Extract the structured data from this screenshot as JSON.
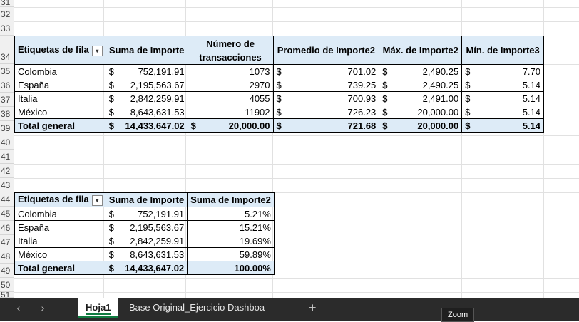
{
  "rows": [
    "31",
    "32",
    "33",
    "34",
    "35",
    "36",
    "37",
    "38",
    "39",
    "40",
    "41",
    "42",
    "43",
    "44",
    "45",
    "46",
    "47",
    "48",
    "49",
    "50",
    "51"
  ],
  "pivot1": {
    "headers": [
      "Etiquetas de fila",
      "Suma de Importe",
      "Número de transacciones",
      "Promedio de Importe2",
      "Máx. de Importe2",
      "Mín. de Importe3"
    ],
    "filter_icon": "▾",
    "currency": "$",
    "rows": [
      {
        "label": "Colombia",
        "suma": "752,191.91",
        "num": "1073",
        "prom": "701.02",
        "max": "2,490.25",
        "min": "7.70"
      },
      {
        "label": "España",
        "suma": "2,195,563.67",
        "num": "2970",
        "prom": "739.25",
        "max": "2,490.25",
        "min": "5.14"
      },
      {
        "label": "Italia",
        "suma": "2,842,259.91",
        "num": "4055",
        "prom": "700.93",
        "max": "2,491.00",
        "min": "5.14"
      },
      {
        "label": "México",
        "suma": "8,643,631.53",
        "num": "11902",
        "prom": "726.23",
        "max": "20,000.00",
        "min": "5.14"
      }
    ],
    "total": {
      "label": "Total general",
      "suma": "14,433,647.02",
      "num": "20,000.00",
      "prom": "721.68",
      "max": "20,000.00",
      "min": "5.14"
    }
  },
  "pivot2": {
    "headers": [
      "Etiquetas de fila",
      "Suma de Importe",
      "Suma de Importe2"
    ],
    "filter_icon": "▾",
    "currency": "$",
    "rows": [
      {
        "label": "Colombia",
        "suma": "752,191.91",
        "pct": "5.21%"
      },
      {
        "label": "España",
        "suma": "2,195,563.67",
        "pct": "15.21%"
      },
      {
        "label": "Italia",
        "suma": "2,842,259.91",
        "pct": "19.69%"
      },
      {
        "label": "México",
        "suma": "8,643,631.53",
        "pct": "59.89%"
      }
    ],
    "total": {
      "label": "Total general",
      "suma": "14,433,647.02",
      "pct": "100.00%"
    }
  },
  "tabs": {
    "prev": "‹",
    "next": "›",
    "sheets": [
      "Hoja1",
      "Base Original_Ejercicio Dashboa"
    ],
    "add": "+"
  },
  "tooltip": "Zoom"
}
